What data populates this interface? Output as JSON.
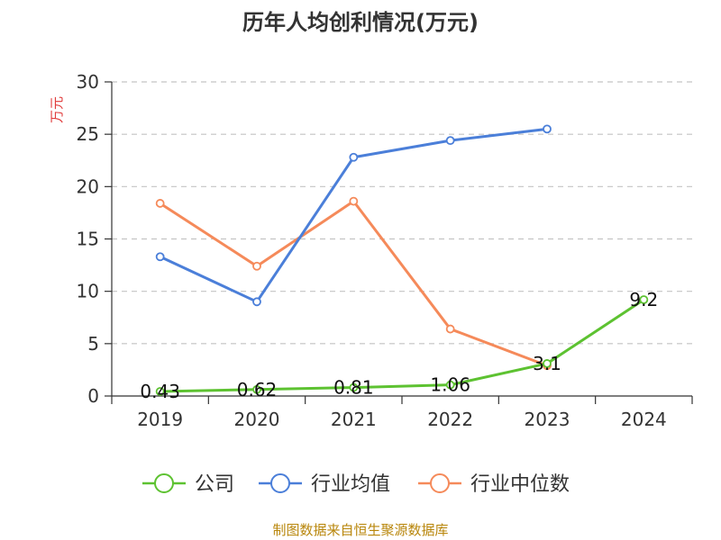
{
  "chart_data": {
    "type": "line",
    "title": "历年人均创利情况(万元)",
    "ylabel": "万元",
    "categories": [
      "2019",
      "2020",
      "2021",
      "2022",
      "2023",
      "2024"
    ],
    "ylim": [
      0,
      30
    ],
    "yticks": [
      0,
      5,
      10,
      15,
      20,
      25,
      30
    ],
    "grid": true,
    "legend_position": "bottom",
    "series": [
      {
        "name": "公司",
        "color": "#5dc231",
        "values": [
          0.43,
          0.62,
          0.81,
          1.06,
          3.1,
          9.2
        ],
        "labels": [
          "0.43",
          "0.62",
          "0.81",
          "1.06",
          "3.1",
          "9.2"
        ]
      },
      {
        "name": "行业均值",
        "color": "#4b7fd9",
        "values": [
          13.3,
          9.0,
          22.8,
          24.4,
          25.5,
          null
        ]
      },
      {
        "name": "行业中位数",
        "color": "#f58a5a",
        "values": [
          18.4,
          12.4,
          18.6,
          6.4,
          2.9,
          null
        ]
      }
    ]
  },
  "footer": {
    "source": "制图数据来自恒生聚源数据库"
  }
}
